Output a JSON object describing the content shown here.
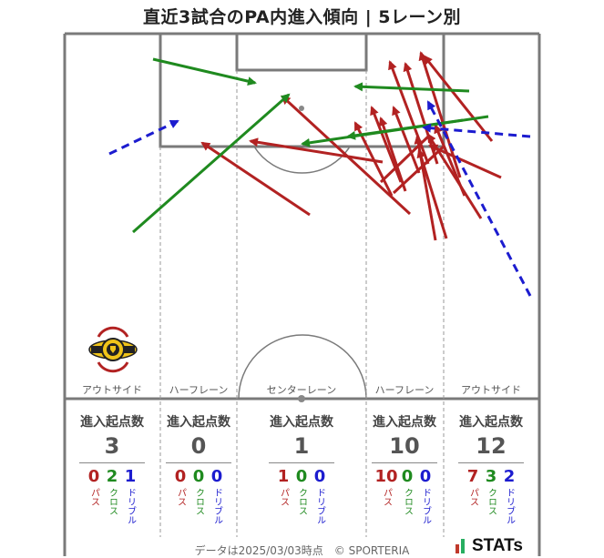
{
  "title": "直近3試合のPA内進入傾向 | 5レーン別",
  "lanes": [
    {
      "name": "アウトサイド",
      "head": "進入起点数",
      "total": "3",
      "pass": "0",
      "cross": "2",
      "dribble": "1"
    },
    {
      "name": "ハーフレーン",
      "head": "進入起点数",
      "total": "0",
      "pass": "0",
      "cross": "0",
      "dribble": "0"
    },
    {
      "name": "センターレーン",
      "head": "進入起点数",
      "total": "1",
      "pass": "1",
      "cross": "0",
      "dribble": "0"
    },
    {
      "name": "ハーフレーン",
      "head": "進入起点数",
      "total": "10",
      "pass": "10",
      "cross": "0",
      "dribble": "0"
    },
    {
      "name": "アウトサイド",
      "head": "進入起点数",
      "total": "12",
      "pass": "7",
      "cross": "3",
      "dribble": "2"
    }
  ],
  "labels": {
    "pass": "パス",
    "cross": "クロス",
    "dribble": "ドリブル"
  },
  "colors": {
    "pass": "#b22222",
    "cross": "#1f8a1f",
    "dribble": "#1c1ccf"
  },
  "team_logo_icon": "kashiwa-reysol-crest",
  "footer": "データは2025/03/03時点　© SPORTERIA",
  "brand": "STATs"
}
